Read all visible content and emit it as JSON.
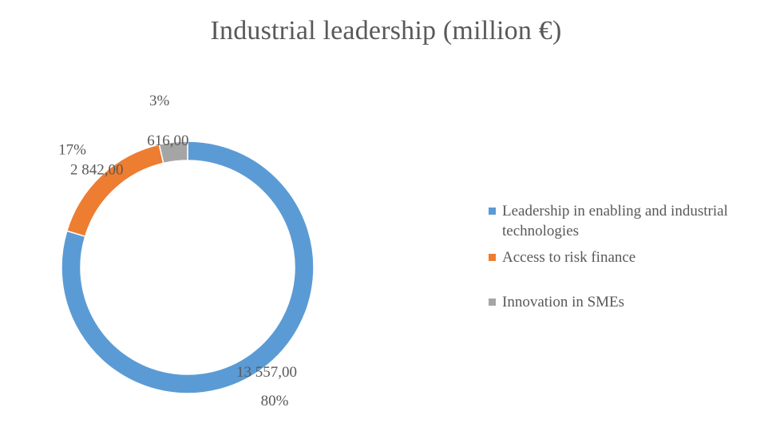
{
  "chart_data": {
    "type": "pie",
    "variant": "donut",
    "title": "Industrial leadership (million €)",
    "unit": "million €",
    "categories": [
      "Leadership in enabling and industrial technologies",
      "Access to risk finance",
      "Innovation in SMEs"
    ],
    "values": [
      13557,
      2842,
      616
    ],
    "value_labels": [
      "13 557,00",
      "2 842,00",
      "616,00"
    ],
    "percent_labels": [
      "80%",
      "17%",
      "3%"
    ],
    "colors": [
      "#5b9bd5",
      "#ed7d31",
      "#a5a5a5"
    ],
    "legend_position": "right"
  }
}
